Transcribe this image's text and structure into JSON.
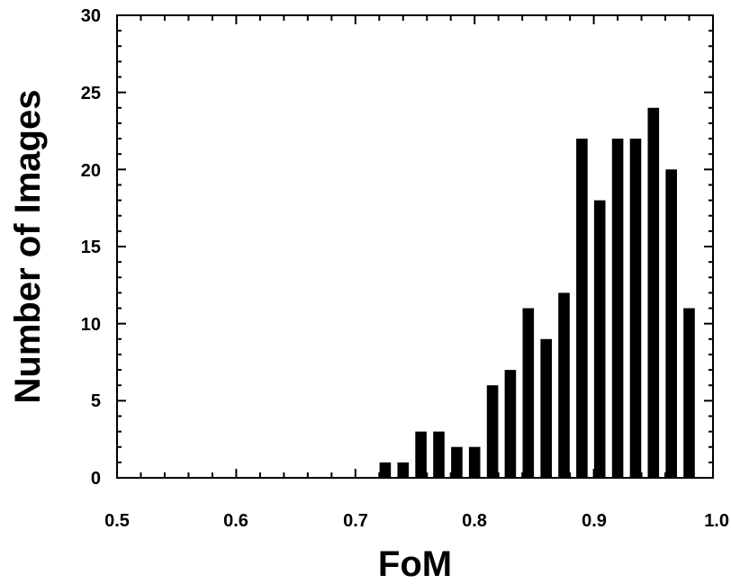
{
  "chart_data": {
    "type": "bar",
    "title": "",
    "xlabel": "FoM",
    "ylabel": "Number of Images",
    "xlim": [
      0.5,
      1.0
    ],
    "ylim": [
      0,
      30
    ],
    "x_ticks": [
      "0.5",
      "0.6",
      "0.7",
      "0.8",
      "0.9",
      "1.0"
    ],
    "y_ticks": [
      "0",
      "5",
      "10",
      "15",
      "20",
      "25",
      "30"
    ],
    "grid": false,
    "bar_color": "#000000",
    "bins": [
      0.725,
      0.74,
      0.755,
      0.77,
      0.785,
      0.8,
      0.815,
      0.83,
      0.845,
      0.86,
      0.875,
      0.89,
      0.905,
      0.92,
      0.935,
      0.95,
      0.965,
      0.98
    ],
    "values": [
      1,
      1,
      3,
      3,
      2,
      2,
      6,
      7,
      11,
      9,
      12,
      22,
      18,
      22,
      22,
      24,
      20,
      11
    ]
  }
}
